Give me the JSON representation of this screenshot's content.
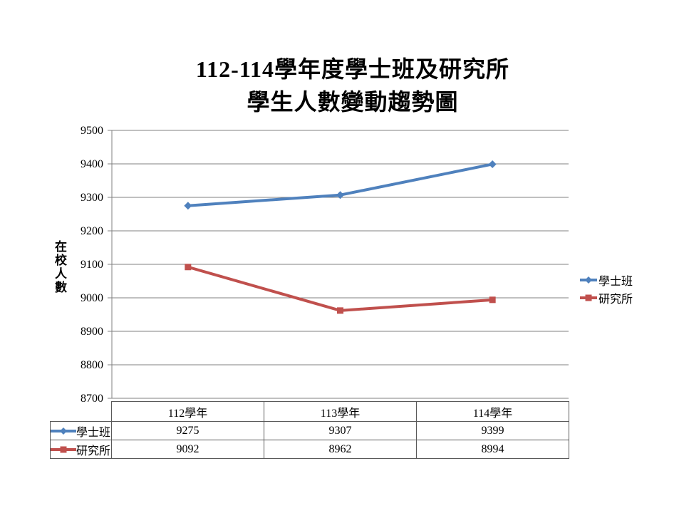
{
  "title": {
    "line1": "112-114學年度學士班及研究所",
    "line2": "學生人數變動趨勢圖"
  },
  "y_axis": {
    "label_vertical": "在校人數",
    "ticks": [
      "9500",
      "9400",
      "9300",
      "9200",
      "9100",
      "9000",
      "8900",
      "8800",
      "8700"
    ]
  },
  "legend": {
    "items": [
      {
        "label": "學士班"
      },
      {
        "label": "研究所"
      }
    ]
  },
  "colors": {
    "series1": "#4F81BD",
    "series2": "#C0504D",
    "grid": "#808080",
    "axis": "#808080",
    "table_border": "#595959",
    "background": "#FFFFFF"
  },
  "chart_data": {
    "type": "line",
    "title": "112-114學年度學士班及研究所 學生人數變動趨勢圖",
    "categories": [
      "112學年",
      "113學年",
      "114學年"
    ],
    "series": [
      {
        "name": "學士班",
        "values": [
          9275,
          9307,
          9399
        ],
        "color": "#4F81BD",
        "marker": "diamond"
      },
      {
        "name": "研究所",
        "values": [
          9092,
          8962,
          8994
        ],
        "color": "#C0504D",
        "marker": "square"
      }
    ],
    "xlabel": "",
    "ylabel": "在校人數",
    "ylim": [
      8700,
      9500
    ],
    "ytick_step": 100,
    "grid": true,
    "legend_position": "right",
    "data_table_shown": true
  }
}
